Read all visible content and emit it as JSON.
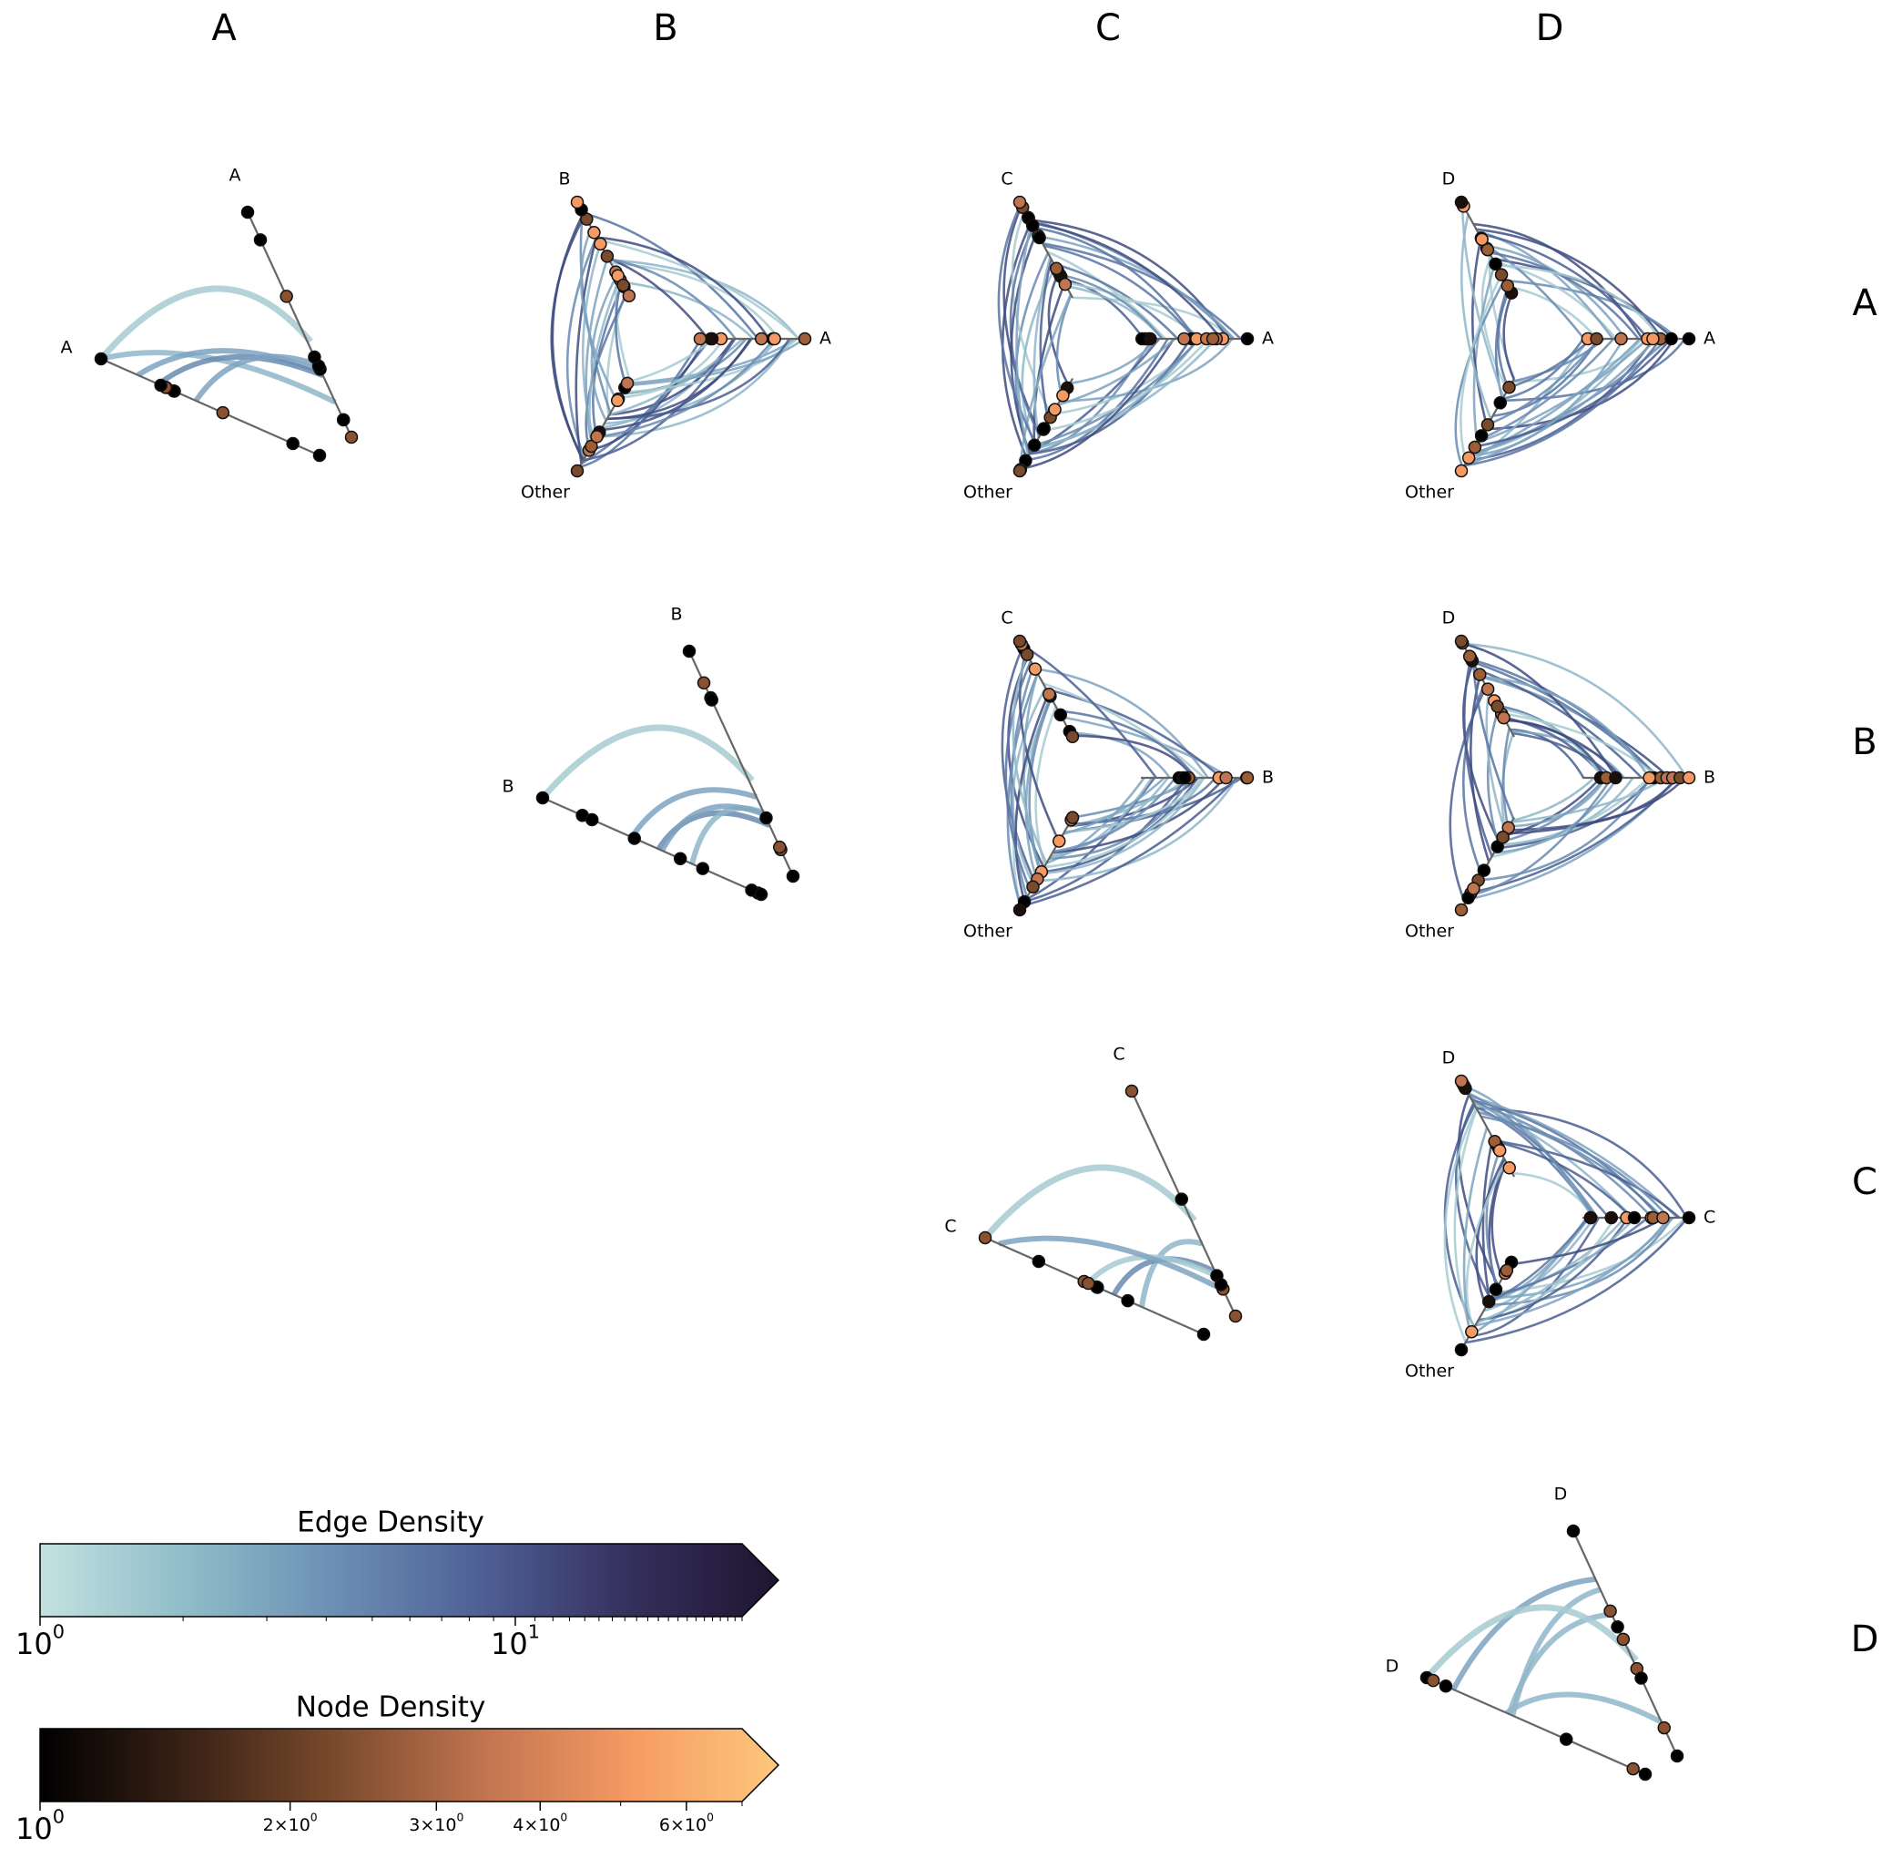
{
  "column_labels": [
    "A",
    "B",
    "C",
    "D"
  ],
  "row_labels": [
    "A",
    "B",
    "C",
    "D"
  ],
  "panels": [
    {
      "row": 0,
      "col": 0,
      "type": "triangle",
      "labels": {
        "top": "A",
        "left": "A"
      }
    },
    {
      "row": 0,
      "col": 1,
      "type": "three-axis",
      "labels": {
        "top": "B",
        "right": "A",
        "bottom": "Other"
      }
    },
    {
      "row": 0,
      "col": 2,
      "type": "three-axis",
      "labels": {
        "top": "C",
        "right": "A",
        "bottom": "Other"
      }
    },
    {
      "row": 0,
      "col": 3,
      "type": "three-axis",
      "labels": {
        "top": "D",
        "right": "A",
        "bottom": "Other"
      }
    },
    {
      "row": 1,
      "col": 1,
      "type": "triangle",
      "labels": {
        "top": "B",
        "left": "B"
      }
    },
    {
      "row": 1,
      "col": 2,
      "type": "three-axis",
      "labels": {
        "top": "C",
        "right": "B",
        "bottom": "Other"
      }
    },
    {
      "row": 1,
      "col": 3,
      "type": "three-axis",
      "labels": {
        "top": "D",
        "right": "B",
        "bottom": "Other"
      }
    },
    {
      "row": 2,
      "col": 2,
      "type": "triangle",
      "labels": {
        "top": "C",
        "left": "C"
      }
    },
    {
      "row": 2,
      "col": 3,
      "type": "three-axis",
      "labels": {
        "top": "D",
        "right": "C",
        "bottom": "Other"
      }
    },
    {
      "row": 3,
      "col": 3,
      "type": "triangle",
      "labels": {
        "top": "D",
        "left": "D"
      }
    }
  ],
  "colorbars": {
    "edge": {
      "title": "Edge Density",
      "colors": [
        "#c2e2e0",
        "#8fbcc8",
        "#6b8fb4",
        "#4e5f95",
        "#352f5c",
        "#1f1530"
      ],
      "ticks": [
        {
          "label": "10",
          "exp": "0",
          "value": 1
        },
        {
          "label": "10",
          "exp": "1",
          "value": 10
        }
      ],
      "max": 30
    },
    "node": {
      "title": "Node Density",
      "colors": [
        "#000000",
        "#3a2216",
        "#7a4a2c",
        "#c07450",
        "#f59a63",
        "#fdc87c"
      ],
      "ticks": [
        {
          "label": "10",
          "exp": "0",
          "value": 1,
          "big": true
        },
        {
          "label": "2×10",
          "exp": "0",
          "value": 2
        },
        {
          "label": "3×10",
          "exp": "0",
          "value": 3
        },
        {
          "label": "4×10",
          "exp": "0",
          "value": 4
        },
        {
          "label": "6×10",
          "exp": "0",
          "value": 6
        }
      ],
      "max": 7
    }
  }
}
